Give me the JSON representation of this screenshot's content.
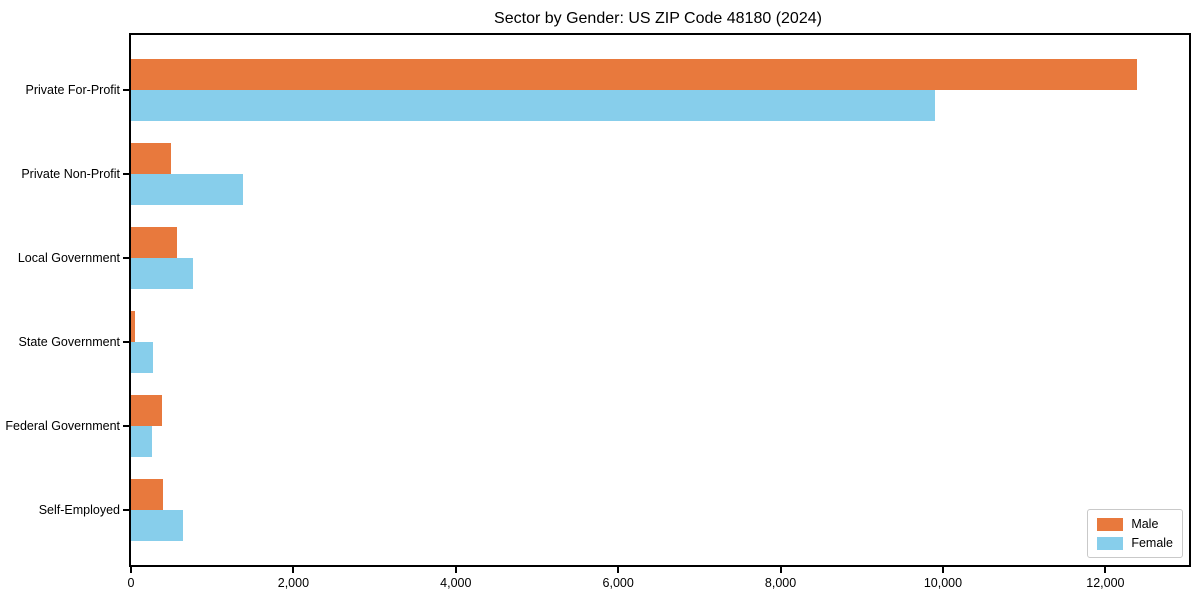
{
  "chart_data": {
    "type": "bar",
    "orientation": "horizontal",
    "title": "Sector by Gender: US ZIP Code 48180 (2024)",
    "categories": [
      "Private For-Profit",
      "Private Non-Profit",
      "Local Government",
      "State Government",
      "Federal Government",
      "Self-Employed"
    ],
    "series": [
      {
        "name": "Male",
        "color": "#e8793d",
        "values": [
          12390,
          490,
          570,
          50,
          380,
          390
        ]
      },
      {
        "name": "Female",
        "color": "#87ceeb",
        "values": [
          9900,
          1380,
          760,
          270,
          260,
          640
        ]
      }
    ],
    "xlim": [
      0,
      13030
    ],
    "xticks": [
      0,
      2000,
      4000,
      6000,
      8000,
      10000,
      12000
    ],
    "xtick_labels": [
      "0",
      "2,000",
      "4,000",
      "6,000",
      "8,000",
      "10,000",
      "12,000"
    ],
    "ylabel": "",
    "xlabel": "",
    "grid": false,
    "legend_position": "lower right",
    "spine_color": "#000000",
    "background_color": "#ffffff"
  }
}
